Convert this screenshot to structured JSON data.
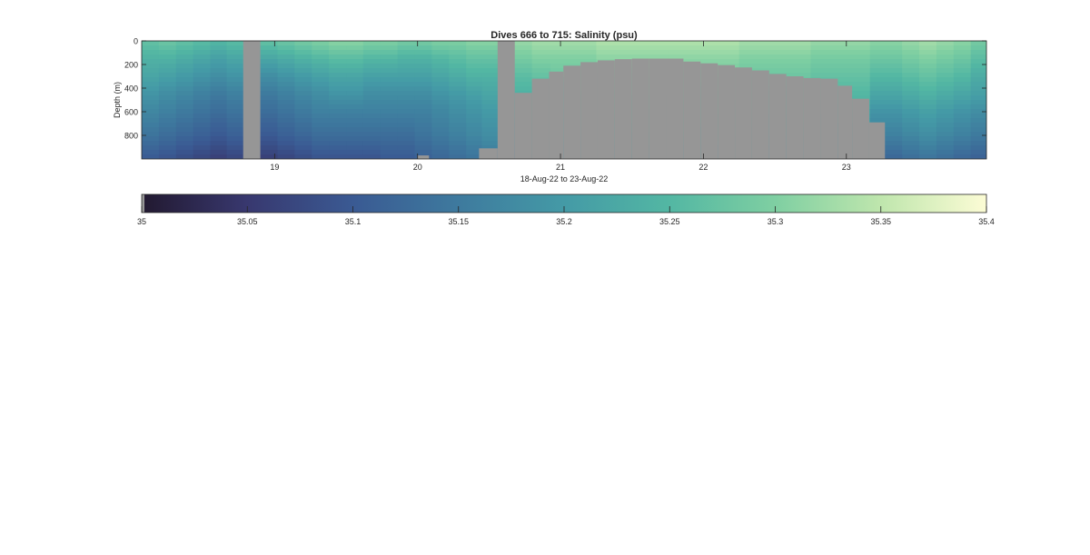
{
  "chart_data": {
    "type": "heatmap",
    "title": "Dives 666 to 715: Salinity (psu)",
    "xlabel": "18-Aug-22 to 23-Aug-22",
    "ylabel": "Depth (m)",
    "x_unit": "day of August 2022",
    "xlim": [
      18.07,
      23.98
    ],
    "ylim": [
      1000,
      0
    ],
    "x_ticks": [
      "19",
      "20",
      "21",
      "22",
      "23"
    ],
    "y_ticks": [
      "0",
      "200",
      "400",
      "600",
      "800"
    ],
    "colorbar": {
      "ticks": [
        "35",
        "35.05",
        "35.1",
        "35.15",
        "35.2",
        "35.25",
        "35.3",
        "35.35",
        "35.4"
      ],
      "range": [
        35,
        35.4
      ],
      "colormap": [
        "#221930",
        "#38386f",
        "#3a5a93",
        "#3e7a9e",
        "#449aa6",
        "#53b7a3",
        "#7fcfa2",
        "#bfe6ad",
        "#fcfcd5"
      ]
    },
    "missing_color": "#969696",
    "missing_data_columns": [
      {
        "x_start": 18.78,
        "x_end": 18.9,
        "from_depth": 0
      },
      {
        "x_start": 20.0,
        "x_end": 20.08,
        "from_depth": 970
      },
      {
        "x_start": 20.43,
        "x_end": 20.56,
        "from_depth": 910
      },
      {
        "x_start": 20.56,
        "x_end": 20.68,
        "from_depth": 0
      },
      {
        "x_start": 20.68,
        "x_end": 20.8,
        "from_depth": 440
      },
      {
        "x_start": 20.8,
        "x_end": 20.92,
        "from_depth": 320
      },
      {
        "x_start": 20.92,
        "x_end": 21.02,
        "from_depth": 260
      },
      {
        "x_start": 21.02,
        "x_end": 21.14,
        "from_depth": 210
      },
      {
        "x_start": 21.14,
        "x_end": 21.26,
        "from_depth": 180
      },
      {
        "x_start": 21.26,
        "x_end": 21.38,
        "from_depth": 165
      },
      {
        "x_start": 21.38,
        "x_end": 21.5,
        "from_depth": 155
      },
      {
        "x_start": 21.5,
        "x_end": 21.62,
        "from_depth": 150
      },
      {
        "x_start": 21.62,
        "x_end": 21.74,
        "from_depth": 150
      },
      {
        "x_start": 21.74,
        "x_end": 21.86,
        "from_depth": 150
      },
      {
        "x_start": 21.86,
        "x_end": 21.98,
        "from_depth": 175
      },
      {
        "x_start": 21.98,
        "x_end": 22.1,
        "from_depth": 190
      },
      {
        "x_start": 22.1,
        "x_end": 22.22,
        "from_depth": 205
      },
      {
        "x_start": 22.22,
        "x_end": 22.34,
        "from_depth": 225
      },
      {
        "x_start": 22.34,
        "x_end": 22.46,
        "from_depth": 250
      },
      {
        "x_start": 22.46,
        "x_end": 22.58,
        "from_depth": 280
      },
      {
        "x_start": 22.58,
        "x_end": 22.7,
        "from_depth": 300
      },
      {
        "x_start": 22.7,
        "x_end": 22.82,
        "from_depth": 315
      },
      {
        "x_start": 22.82,
        "x_end": 22.94,
        "from_depth": 320
      },
      {
        "x_start": 22.94,
        "x_end": 23.04,
        "from_depth": 380
      },
      {
        "x_start": 23.04,
        "x_end": 23.16,
        "from_depth": 490
      },
      {
        "x_start": 23.16,
        "x_end": 23.27,
        "from_depth": 690
      }
    ],
    "profiles": [
      {
        "x": 18.13,
        "salinity_by_depth": [
          35.27,
          35.24,
          35.22,
          35.19,
          35.17,
          35.14,
          35.1
        ]
      },
      {
        "x": 18.25,
        "salinity_by_depth": [
          35.28,
          35.24,
          35.21,
          35.18,
          35.16,
          35.13,
          35.09
        ]
      },
      {
        "x": 18.37,
        "salinity_by_depth": [
          35.27,
          35.23,
          35.2,
          35.17,
          35.15,
          35.12,
          35.08
        ]
      },
      {
        "x": 18.49,
        "salinity_by_depth": [
          35.26,
          35.22,
          35.19,
          35.16,
          35.14,
          35.11,
          35.07
        ]
      },
      {
        "x": 18.61,
        "salinity_by_depth": [
          35.25,
          35.21,
          35.18,
          35.15,
          35.13,
          35.1,
          35.06
        ]
      },
      {
        "x": 18.72,
        "salinity_by_depth": [
          35.26,
          35.22,
          35.19,
          35.16,
          35.14,
          35.11,
          35.07
        ]
      },
      {
        "x": 18.96,
        "salinity_by_depth": [
          35.27,
          35.22,
          35.18,
          35.15,
          35.13,
          35.1,
          35.06
        ]
      },
      {
        "x": 19.08,
        "salinity_by_depth": [
          35.28,
          35.23,
          35.19,
          35.16,
          35.14,
          35.11,
          35.07
        ]
      },
      {
        "x": 19.2,
        "salinity_by_depth": [
          35.29,
          35.24,
          35.2,
          35.17,
          35.15,
          35.12,
          35.08
        ]
      },
      {
        "x": 19.32,
        "salinity_by_depth": [
          35.3,
          35.25,
          35.21,
          35.18,
          35.16,
          35.13,
          35.09
        ]
      },
      {
        "x": 19.44,
        "salinity_by_depth": [
          35.31,
          35.26,
          35.22,
          35.19,
          35.16,
          35.13,
          35.09
        ]
      },
      {
        "x": 19.56,
        "salinity_by_depth": [
          35.31,
          35.26,
          35.22,
          35.19,
          35.16,
          35.13,
          35.09
        ]
      },
      {
        "x": 19.68,
        "salinity_by_depth": [
          35.3,
          35.25,
          35.21,
          35.18,
          35.16,
          35.13,
          35.09
        ]
      },
      {
        "x": 19.8,
        "salinity_by_depth": [
          35.3,
          35.25,
          35.21,
          35.18,
          35.16,
          35.13,
          35.1
        ]
      },
      {
        "x": 19.92,
        "salinity_by_depth": [
          35.29,
          35.24,
          35.21,
          35.18,
          35.16,
          35.13,
          35.1
        ]
      },
      {
        "x": 20.04,
        "salinity_by_depth": [
          35.29,
          35.24,
          35.21,
          35.18,
          35.16,
          35.14,
          35.11
        ]
      },
      {
        "x": 20.16,
        "salinity_by_depth": [
          35.3,
          35.25,
          35.22,
          35.19,
          35.17,
          35.15,
          35.12
        ]
      },
      {
        "x": 20.28,
        "salinity_by_depth": [
          35.3,
          35.26,
          35.23,
          35.2,
          35.18,
          35.16,
          35.13
        ]
      },
      {
        "x": 20.4,
        "salinity_by_depth": [
          35.31,
          35.27,
          35.24,
          35.21,
          35.19,
          35.17,
          35.14
        ]
      },
      {
        "x": 20.5,
        "salinity_by_depth": [
          35.31,
          35.27,
          35.24,
          35.22,
          35.2,
          35.18,
          35.15
        ]
      },
      {
        "x": 20.74,
        "salinity_by_depth": [
          35.32,
          35.29,
          35.26,
          35.24,
          35.22,
          35.2,
          35.17
        ]
      },
      {
        "x": 20.86,
        "salinity_by_depth": [
          35.33,
          35.3,
          35.27,
          35.25,
          35.23,
          35.21,
          35.18
        ]
      },
      {
        "x": 21.0,
        "salinity_by_depth": [
          35.33,
          35.3,
          35.28,
          35.26,
          35.24,
          35.22,
          35.19
        ]
      },
      {
        "x": 21.5,
        "salinity_by_depth": [
          35.34,
          35.31,
          35.29,
          35.27,
          35.25,
          35.23,
          35.2
        ]
      },
      {
        "x": 22.0,
        "salinity_by_depth": [
          35.34,
          35.31,
          35.29,
          35.27,
          35.25,
          35.23,
          35.2
        ]
      },
      {
        "x": 22.5,
        "salinity_by_depth": [
          35.33,
          35.3,
          35.28,
          35.26,
          35.24,
          35.22,
          35.19
        ]
      },
      {
        "x": 23.0,
        "salinity_by_depth": [
          35.32,
          35.29,
          35.27,
          35.25,
          35.23,
          35.21,
          35.18
        ]
      },
      {
        "x": 23.33,
        "salinity_by_depth": [
          35.31,
          35.28,
          35.25,
          35.22,
          35.19,
          35.16,
          35.12
        ]
      },
      {
        "x": 23.45,
        "salinity_by_depth": [
          35.32,
          35.29,
          35.26,
          35.23,
          35.2,
          35.17,
          35.13
        ]
      },
      {
        "x": 23.57,
        "salinity_by_depth": [
          35.33,
          35.3,
          35.27,
          35.24,
          35.21,
          35.18,
          35.14
        ]
      },
      {
        "x": 23.69,
        "salinity_by_depth": [
          35.32,
          35.29,
          35.26,
          35.23,
          35.2,
          35.17,
          35.13
        ]
      },
      {
        "x": 23.81,
        "salinity_by_depth": [
          35.31,
          35.28,
          35.25,
          35.22,
          35.19,
          35.16,
          35.12
        ]
      },
      {
        "x": 23.93,
        "salinity_by_depth": [
          35.29,
          35.26,
          35.23,
          35.21,
          35.18,
          35.15,
          35.11
        ]
      }
    ],
    "profile_depths": [
      0,
      150,
      300,
      450,
      600,
      800,
      1000
    ],
    "grid": false,
    "legend": "colorbar-below"
  }
}
